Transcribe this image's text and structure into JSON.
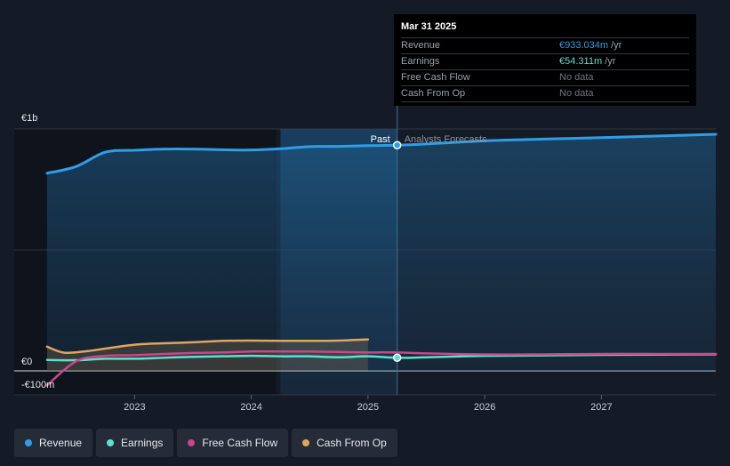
{
  "colors": {
    "revenue": "#2f9ee6",
    "earnings": "#5fe0cf",
    "free_cash_flow": "#c9478a",
    "cash_from_op": "#e0a55e"
  },
  "tooltip": {
    "date": "Mar 31 2025",
    "rows": [
      {
        "name": "Revenue",
        "value": "€933.034m",
        "unit": "/yr",
        "kind": "rev"
      },
      {
        "name": "Earnings",
        "value": "€54.311m",
        "unit": "/yr",
        "kind": "earn"
      },
      {
        "name": "Free Cash Flow",
        "value": "No data",
        "unit": "",
        "kind": "na"
      },
      {
        "name": "Cash From Op",
        "value": "No data",
        "unit": "",
        "kind": "na"
      }
    ]
  },
  "legend": [
    {
      "label": "Revenue",
      "key": "revenue"
    },
    {
      "label": "Earnings",
      "key": "earnings"
    },
    {
      "label": "Free Cash Flow",
      "key": "free_cash_flow"
    },
    {
      "label": "Cash From Op",
      "key": "cash_from_op"
    }
  ],
  "chart_data": {
    "type": "line",
    "y_unit": "€m",
    "ylim": [
      -100,
      1000
    ],
    "y_tick_values": [
      1000,
      0,
      -100
    ],
    "y_tick_labels": [
      "€1b",
      "€0",
      "-€100m"
    ],
    "x_range": [
      2022.22,
      2027.98
    ],
    "x_ticks": [
      2023,
      2024,
      2025,
      2026,
      2027
    ],
    "x_tick_labels": [
      "2023",
      "2024",
      "2025",
      "2026",
      "2027"
    ],
    "past_label": "Past",
    "forecast_label": "Analysts Forecasts",
    "divider_x": 2025.25,
    "past_shade_start_x": 2024.25,
    "grid": true,
    "series": [
      {
        "name": "Revenue",
        "key": "revenue",
        "area": true,
        "points": [
          [
            2022.25,
            817
          ],
          [
            2022.5,
            845
          ],
          [
            2022.75,
            904
          ],
          [
            2023.0,
            912
          ],
          [
            2023.25,
            917
          ],
          [
            2023.5,
            917
          ],
          [
            2023.75,
            914
          ],
          [
            2024.0,
            913
          ],
          [
            2024.25,
            918
          ],
          [
            2024.5,
            927
          ],
          [
            2024.75,
            928
          ],
          [
            2025.0,
            931
          ],
          [
            2025.25,
            933
          ],
          [
            2025.5,
            938
          ],
          [
            2026.0,
            951
          ],
          [
            2026.5,
            958
          ],
          [
            2027.0,
            964
          ],
          [
            2027.5,
            971
          ],
          [
            2027.98,
            978
          ]
        ]
      },
      {
        "name": "Earnings",
        "key": "earnings",
        "area": false,
        "points": [
          [
            2022.25,
            45
          ],
          [
            2022.5,
            44
          ],
          [
            2022.75,
            50
          ],
          [
            2023.0,
            50
          ],
          [
            2023.25,
            54
          ],
          [
            2023.5,
            58
          ],
          [
            2023.75,
            60
          ],
          [
            2024.0,
            62
          ],
          [
            2024.25,
            60
          ],
          [
            2024.5,
            60
          ],
          [
            2024.75,
            56
          ],
          [
            2025.0,
            60
          ],
          [
            2025.25,
            54
          ],
          [
            2025.5,
            56
          ],
          [
            2026.0,
            62
          ],
          [
            2026.5,
            64
          ],
          [
            2027.0,
            66
          ],
          [
            2027.5,
            67
          ],
          [
            2027.98,
            68
          ]
        ]
      },
      {
        "name": "Free Cash Flow",
        "key": "free_cash_flow",
        "area": false,
        "points": [
          [
            2022.25,
            -60
          ],
          [
            2022.5,
            40
          ],
          [
            2022.75,
            62
          ],
          [
            2023.0,
            65
          ],
          [
            2023.25,
            70
          ],
          [
            2023.5,
            74
          ],
          [
            2023.75,
            76
          ],
          [
            2024.0,
            80
          ],
          [
            2024.25,
            80
          ],
          [
            2024.5,
            80
          ],
          [
            2024.75,
            78
          ],
          [
            2025.0,
            76
          ],
          [
            2025.25,
            76
          ],
          [
            2025.5,
            72
          ],
          [
            2026.0,
            68
          ],
          [
            2026.5,
            68
          ],
          [
            2027.0,
            70
          ],
          [
            2027.5,
            70
          ],
          [
            2027.98,
            70
          ]
        ]
      },
      {
        "name": "Cash From Op",
        "key": "cash_from_op",
        "area": true,
        "points": [
          [
            2022.25,
            100
          ],
          [
            2022.4,
            75
          ],
          [
            2022.6,
            82
          ],
          [
            2022.75,
            92
          ],
          [
            2023.0,
            108
          ],
          [
            2023.25,
            114
          ],
          [
            2023.5,
            118
          ],
          [
            2023.75,
            124
          ],
          [
            2024.0,
            125
          ],
          [
            2024.25,
            124
          ],
          [
            2024.5,
            124
          ],
          [
            2024.75,
            125
          ],
          [
            2025.0,
            130
          ]
        ]
      }
    ],
    "highlight_points": [
      {
        "series": "revenue",
        "x": 2025.25,
        "y": 933.034
      },
      {
        "series": "earnings",
        "x": 2025.25,
        "y": 54.311
      }
    ]
  }
}
